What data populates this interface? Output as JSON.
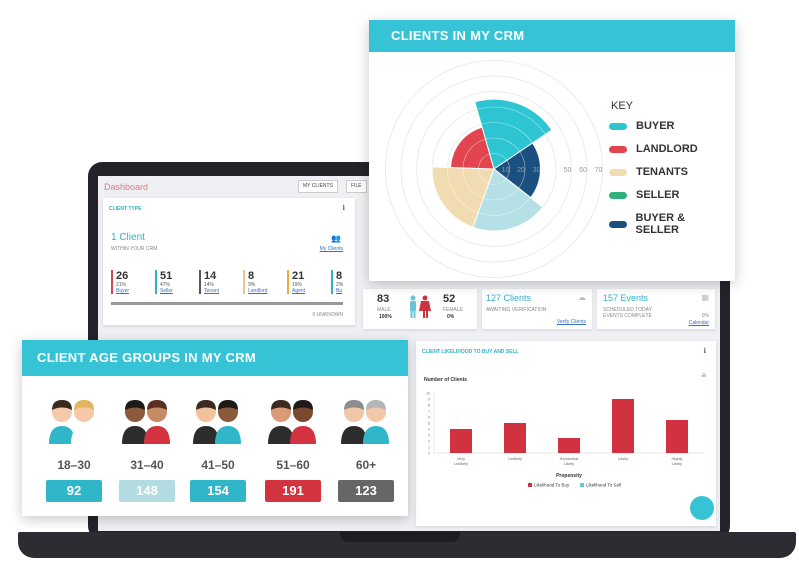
{
  "dashboard": {
    "title": "Dashboard",
    "tabs": [
      "MY CLIENTS",
      "FILE"
    ]
  },
  "client_type": {
    "header": "CLIENT TYPE",
    "count": "1 Client",
    "sub": "WITHIN YOUR CRM",
    "link": "My Clients",
    "unknown": "0 UNKNOWN",
    "stats": [
      {
        "n": "26",
        "pct": "21%",
        "label": "Buyer",
        "color": "#d64550"
      },
      {
        "n": "51",
        "pct": "47%",
        "label": "Seller",
        "color": "#36aec9"
      },
      {
        "n": "14",
        "pct": "14%",
        "label": "Tenant",
        "color": "#555555"
      },
      {
        "n": "8",
        "pct": "9%",
        "label": "Landlord",
        "color": "#e8c88a"
      },
      {
        "n": "21",
        "pct": "19%",
        "label": "Agent",
        "color": "#f2a93b"
      },
      {
        "n": "8",
        "pct": "2%",
        "label": "Bu",
        "color": "#36aec9"
      }
    ]
  },
  "gender": {
    "male_count": "83",
    "male_label": "MALE",
    "male_pct": "100%",
    "female_count": "52",
    "female_label": "FEMALE",
    "female_pct": "0%"
  },
  "clients_card": {
    "title": "127 Clients",
    "sub": "AWAITING VERIFICATION",
    "link": "Verify Clients"
  },
  "events_card": {
    "title": "157 Events",
    "sub1": "SCHEDULED TODAY",
    "sub2": "EVENTS COMPLETE",
    "pct": "0%",
    "link": "Calendar"
  },
  "likelihood": {
    "header": "CLIENT LIKELIHOOD TO BUY AND SELL",
    "menu": "≡",
    "chart_data": {
      "type": "bar",
      "title": "Number of Clients",
      "xlabel": "Propensity",
      "categories": [
        "Very Unlikely",
        "Unlikely",
        "Somewhat Likely",
        "Likely",
        "Highly Likely"
      ],
      "ylim": [
        0,
        10
      ],
      "yticks": [
        "0",
        "1",
        "2",
        "3",
        "4",
        "5",
        "6",
        "7",
        "8",
        "9",
        "10"
      ],
      "series": [
        {
          "name": "Likelihood To Buy",
          "values": [
            4,
            5,
            2.5,
            9,
            5.5
          ],
          "color": "#d0333f"
        },
        {
          "name": "Likelihood To Sell",
          "values": [
            0,
            0,
            0,
            0,
            0
          ],
          "color": "#6cc2d8"
        }
      ]
    }
  },
  "clients_crm": {
    "header": "CLIENTS IN MY CRM",
    "key_title": "KEY",
    "chart_data": {
      "type": "polar-area",
      "rticks": [
        "10",
        "20",
        "30",
        "50",
        "60",
        "70"
      ],
      "series": [
        {
          "name": "BUYER",
          "value": 45,
          "color": "#2ec5d3"
        },
        {
          "name": "LANDLORD",
          "value": 28,
          "color": "#e2454f"
        },
        {
          "name": "TENANTS",
          "value": 40,
          "color": "#f1dcb1"
        },
        {
          "name": "SELLER",
          "value": 40,
          "color": "#b5e0e5"
        },
        {
          "name": "BUYER & SELLER",
          "value": 30,
          "color": "#1b4f80"
        }
      ],
      "key_colors": [
        "#2ec5d3",
        "#e2454f",
        "#f1dcb1",
        "#2db37a",
        "#1b4f80"
      ]
    }
  },
  "age_groups": {
    "header": "CLIENT AGE GROUPS IN MY CRM",
    "groups": [
      {
        "label": "18–30",
        "value": "92",
        "color": "#2fb6c8"
      },
      {
        "label": "31–40",
        "value": "148",
        "color": "#b2dbe2"
      },
      {
        "label": "41–50",
        "value": "154",
        "color": "#2fb6c8"
      },
      {
        "label": "51–60",
        "value": "191",
        "color": "#d2333f"
      },
      {
        "label": "60+",
        "value": "123",
        "color": "#666666"
      }
    ]
  }
}
